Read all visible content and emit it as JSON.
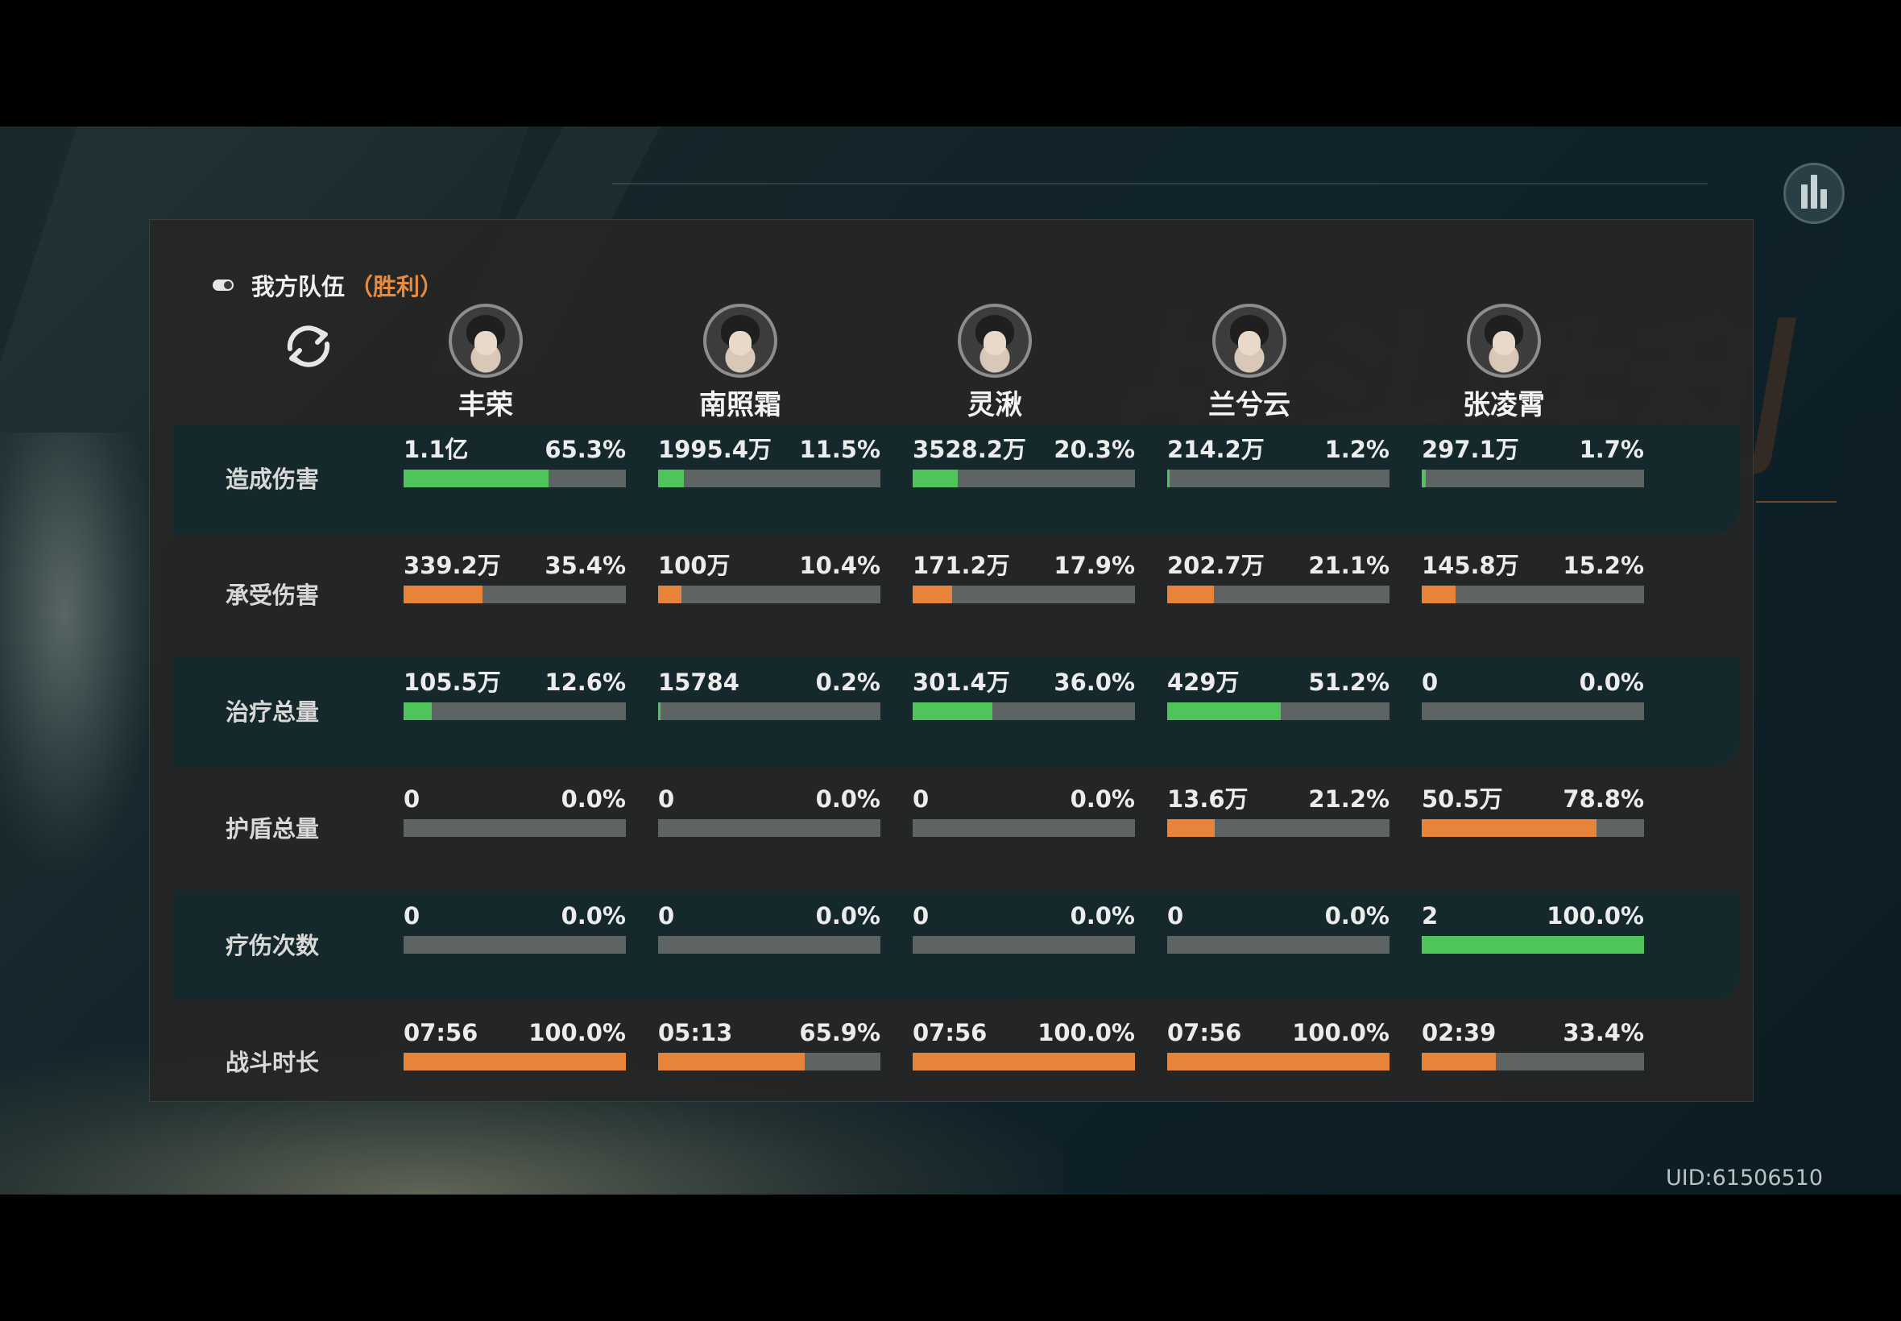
{
  "team": {
    "label": "我方队伍",
    "status": "（胜利）"
  },
  "uid": "UID:61506510",
  "colors": {
    "green": "#4fc45a",
    "orange": "#e8843a",
    "track": "#5e6463",
    "accent": "#e98a3e"
  },
  "background_text": [
    "战",
    "斗",
    "胜",
    "利"
  ],
  "heroes": [
    {
      "name": "丰荣"
    },
    {
      "name": "南照霜"
    },
    {
      "name": "灵湫"
    },
    {
      "name": "兰兮云"
    },
    {
      "name": "张凌霄"
    }
  ],
  "rows": [
    {
      "label": "造成伤害",
      "color": "green",
      "cells": [
        {
          "value": "1.1亿",
          "percent": "65.3%",
          "fill": 0.653
        },
        {
          "value": "1995.4万",
          "percent": "11.5%",
          "fill": 0.115
        },
        {
          "value": "3528.2万",
          "percent": "20.3%",
          "fill": 0.203
        },
        {
          "value": "214.2万",
          "percent": "1.2%",
          "fill": 0.012
        },
        {
          "value": "297.1万",
          "percent": "1.7%",
          "fill": 0.017
        }
      ]
    },
    {
      "label": "承受伤害",
      "color": "orange",
      "cells": [
        {
          "value": "339.2万",
          "percent": "35.4%",
          "fill": 0.354
        },
        {
          "value": "100万",
          "percent": "10.4%",
          "fill": 0.104
        },
        {
          "value": "171.2万",
          "percent": "17.9%",
          "fill": 0.179
        },
        {
          "value": "202.7万",
          "percent": "21.1%",
          "fill": 0.211
        },
        {
          "value": "145.8万",
          "percent": "15.2%",
          "fill": 0.152
        }
      ]
    },
    {
      "label": "治疗总量",
      "color": "green",
      "cells": [
        {
          "value": "105.5万",
          "percent": "12.6%",
          "fill": 0.126
        },
        {
          "value": "15784",
          "percent": "0.2%",
          "fill": 0.002
        },
        {
          "value": "301.4万",
          "percent": "36.0%",
          "fill": 0.36
        },
        {
          "value": "429万",
          "percent": "51.2%",
          "fill": 0.512
        },
        {
          "value": "0",
          "percent": "0.0%",
          "fill": 0
        }
      ]
    },
    {
      "label": "护盾总量",
      "color": "orange",
      "cells": [
        {
          "value": "0",
          "percent": "0.0%",
          "fill": 0
        },
        {
          "value": "0",
          "percent": "0.0%",
          "fill": 0
        },
        {
          "value": "0",
          "percent": "0.0%",
          "fill": 0
        },
        {
          "value": "13.6万",
          "percent": "21.2%",
          "fill": 0.212
        },
        {
          "value": "50.5万",
          "percent": "78.8%",
          "fill": 0.788
        }
      ]
    },
    {
      "label": "疗伤次数",
      "color": "green",
      "cells": [
        {
          "value": "0",
          "percent": "0.0%",
          "fill": 0
        },
        {
          "value": "0",
          "percent": "0.0%",
          "fill": 0
        },
        {
          "value": "0",
          "percent": "0.0%",
          "fill": 0
        },
        {
          "value": "0",
          "percent": "0.0%",
          "fill": 0
        },
        {
          "value": "2",
          "percent": "100.0%",
          "fill": 1.0
        }
      ]
    },
    {
      "label": "战斗时长",
      "color": "orange",
      "cells": [
        {
          "value": "07:56",
          "percent": "100.0%",
          "fill": 1.0
        },
        {
          "value": "05:13",
          "percent": "65.9%",
          "fill": 0.659
        },
        {
          "value": "07:56",
          "percent": "100.0%",
          "fill": 1.0
        },
        {
          "value": "07:56",
          "percent": "100.0%",
          "fill": 1.0
        },
        {
          "value": "02:39",
          "percent": "33.4%",
          "fill": 0.334
        }
      ]
    }
  ],
  "icons": {
    "toggle": "toggle-icon",
    "swap": "swap-icon",
    "stats": "bar-chart-icon"
  }
}
